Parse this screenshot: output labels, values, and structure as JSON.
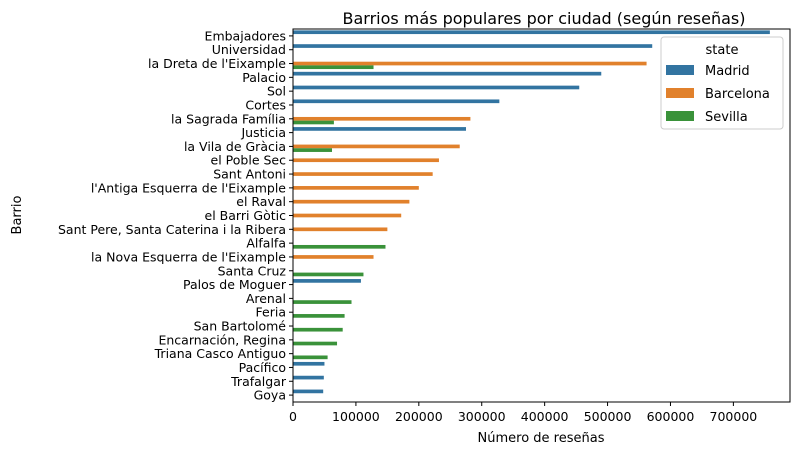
{
  "chart_data": {
    "type": "bar",
    "orientation": "horizontal",
    "title": "Barrios más populares por ciudad (según reseñas)",
    "xlabel": "Número de reseñas",
    "ylabel": "Barrio",
    "xlim": [
      0,
      790000
    ],
    "xticks": [
      0,
      100000,
      200000,
      300000,
      400000,
      500000,
      600000,
      700000
    ],
    "xtick_labels": [
      "0",
      "100000",
      "200000",
      "300000",
      "400000",
      "500000",
      "600000",
      "700000"
    ],
    "grid": false,
    "legend": {
      "title": "state",
      "position": "top-right"
    },
    "categories": [
      "Embajadores",
      "Universidad",
      "la Dreta de l'Eixample",
      "Palacio",
      "Sol",
      "Cortes",
      "la Sagrada Família",
      "Justicia",
      "la Vila de Gràcia",
      "el Poble Sec",
      "Sant Antoni",
      "l'Antiga Esquerra de l'Eixample",
      "el Raval",
      "el Barri Gòtic",
      "Sant Pere, Santa Caterina i la Ribera",
      "Alfalfa",
      "la Nova Esquerra de l'Eixample",
      "Santa Cruz",
      "Palos de Moguer",
      "Arenal",
      "Feria",
      "San Bartolomé",
      "Encarnación, Regina",
      "Triana Casco Antiguo",
      "Pacífico",
      "Trafalgar",
      "Goya"
    ],
    "series": [
      {
        "name": "Madrid",
        "color": "#3274a1",
        "values": [
          758000,
          571000,
          null,
          490000,
          455000,
          328000,
          null,
          275000,
          null,
          null,
          null,
          null,
          null,
          null,
          null,
          null,
          null,
          null,
          108000,
          null,
          null,
          null,
          null,
          null,
          50000,
          49000,
          48000
        ]
      },
      {
        "name": "Barcelona",
        "color": "#e1812c",
        "values": [
          null,
          null,
          562000,
          null,
          null,
          null,
          282000,
          null,
          265000,
          232000,
          222000,
          200000,
          185000,
          172000,
          150000,
          null,
          128000,
          null,
          null,
          null,
          null,
          null,
          null,
          null,
          null,
          null,
          null
        ]
      },
      {
        "name": "Sevilla",
        "color": "#3a923a",
        "values": [
          null,
          null,
          128000,
          null,
          null,
          null,
          65000,
          null,
          62000,
          null,
          null,
          null,
          null,
          null,
          null,
          147000,
          null,
          112000,
          null,
          93000,
          82000,
          79000,
          70000,
          55000,
          null,
          null,
          null
        ]
      }
    ]
  }
}
